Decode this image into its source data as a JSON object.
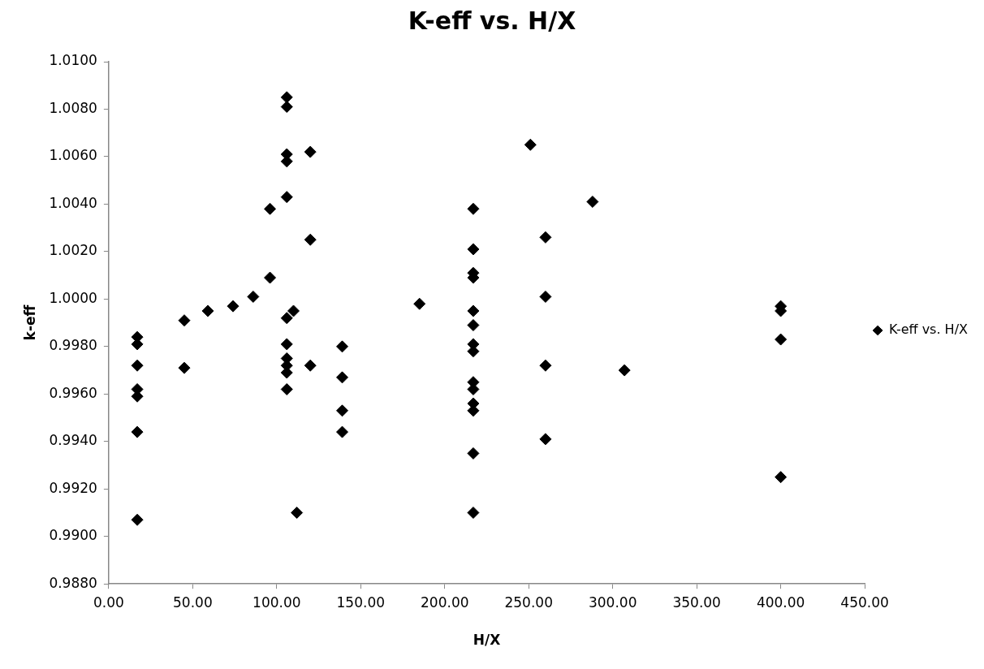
{
  "chart_data": {
    "type": "scatter",
    "title": "K-eff vs. H/X",
    "xlabel": "H/X",
    "ylabel": "k-eff",
    "xlim": [
      0,
      450
    ],
    "xticks": [
      {
        "value": 0,
        "label": "0.00"
      },
      {
        "value": 50,
        "label": "50.00"
      },
      {
        "value": 100,
        "label": "100.00"
      },
      {
        "value": 150,
        "label": "150.00"
      },
      {
        "value": 200,
        "label": "200.00"
      },
      {
        "value": 250,
        "label": "250.00"
      },
      {
        "value": 300,
        "label": "300.00"
      },
      {
        "value": 350,
        "label": "350.00"
      },
      {
        "value": 400,
        "label": "400.00"
      },
      {
        "value": 450,
        "label": "450.00"
      }
    ],
    "ylim": [
      0.988,
      1.01
    ],
    "yticks": [
      {
        "value": 0.988,
        "label": "0.9880"
      },
      {
        "value": 0.99,
        "label": "0.9900"
      },
      {
        "value": 0.992,
        "label": "0.9920"
      },
      {
        "value": 0.994,
        "label": "0.9940"
      },
      {
        "value": 0.996,
        "label": "0.9960"
      },
      {
        "value": 0.998,
        "label": "0.9980"
      },
      {
        "value": 1,
        "label": "1.0000"
      },
      {
        "value": 1.002,
        "label": "1.0020"
      },
      {
        "value": 1.004,
        "label": "1.0040"
      },
      {
        "value": 1.006,
        "label": "1.0060"
      },
      {
        "value": 1.008,
        "label": "1.0080"
      },
      {
        "value": 1.01,
        "label": "1.0100"
      }
    ],
    "grid": false,
    "legend": "right",
    "marker": "diamond",
    "series": [
      {
        "name": "K-eff vs. H/X",
        "color": "#000000",
        "x": [
          17,
          17,
          17,
          17,
          17,
          17,
          17,
          45,
          45,
          59,
          74,
          86,
          96,
          96,
          106,
          106,
          106,
          106,
          106,
          106,
          106,
          106,
          106,
          106,
          106,
          120,
          120,
          110,
          120,
          112,
          139,
          139,
          139,
          139,
          185,
          217,
          217,
          217,
          217,
          217,
          217,
          217,
          217,
          217,
          217,
          217,
          217,
          217,
          217,
          251,
          288,
          260,
          260,
          260,
          260,
          307,
          400,
          400,
          400,
          400
        ],
        "values": [
          0.9984,
          0.9981,
          0.9972,
          0.9962,
          0.9959,
          0.9944,
          0.9907,
          0.9991,
          0.9971,
          0.9995,
          0.9997,
          1.0001,
          1.0009,
          1.0038,
          1.0085,
          1.0081,
          1.0061,
          1.0058,
          1.0043,
          0.9992,
          0.9981,
          0.9975,
          0.9972,
          0.9969,
          0.9962,
          1.0062,
          1.0025,
          0.9995,
          0.9972,
          0.991,
          0.998,
          0.9967,
          0.9953,
          0.9944,
          0.9998,
          1.0038,
          1.0021,
          1.0011,
          1.0009,
          0.9995,
          0.9989,
          0.9981,
          0.9978,
          0.9965,
          0.9962,
          0.9956,
          0.9953,
          0.9935,
          0.991,
          1.0065,
          1.0041,
          1.0026,
          1.0001,
          0.9972,
          0.9941,
          0.997,
          0.9997,
          0.9995,
          0.9983,
          0.9925
        ]
      }
    ]
  }
}
